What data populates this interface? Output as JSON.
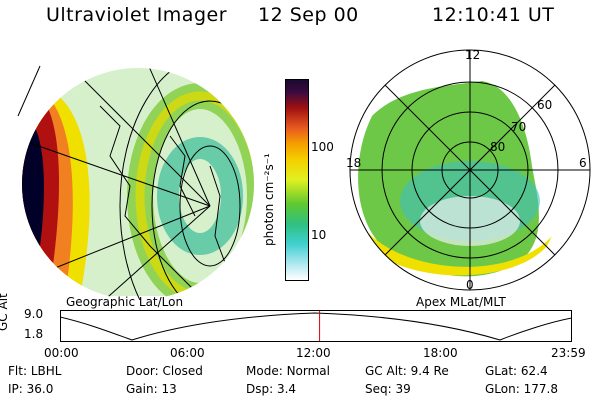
{
  "header": {
    "title": "Ultraviolet Imager",
    "date": "12 Sep 00",
    "time": "12:10:41 UT"
  },
  "colorbar": {
    "label": "photon cm⁻²s⁻¹",
    "ticks": [
      "100",
      "10"
    ],
    "colors": [
      "#1a0a30",
      "#3a0a40",
      "#6a1020",
      "#a01010",
      "#d03020",
      "#e85a20",
      "#f5a000",
      "#f5d000",
      "#e0f020",
      "#a8e030",
      "#60c830",
      "#30c080",
      "#40d0d0",
      "#b0e8f0",
      "#ffffff"
    ]
  },
  "left_panel": {
    "caption": "Geographic Lat/Lon",
    "emission_colors": [
      "#000028",
      "#b01010",
      "#f08020",
      "#f0e000",
      "#8ed040",
      "#40c0c0",
      "#e8f0f0"
    ]
  },
  "right_panel": {
    "caption": "Apex MLat/MLT",
    "mlt_labels": {
      "top": "12",
      "left": "18",
      "right": "6",
      "bottom": "0"
    },
    "lat_labels": [
      "60",
      "70",
      "80"
    ]
  },
  "timeline": {
    "y_label": "GC Alt",
    "y_ticks": [
      "9.0",
      "1.8"
    ],
    "x_ticks": [
      "00:00",
      "06:00",
      "12:00",
      "18:00",
      "23:59"
    ],
    "marker_fraction": 0.507
  },
  "info": {
    "row1": [
      {
        "label": "Flt:",
        "value": "LBHL"
      },
      {
        "label": "Door:",
        "value": "Closed"
      },
      {
        "label": "Mode:",
        "value": "Normal"
      },
      {
        "label": "GC Alt:",
        "value": "9.4 Re"
      },
      {
        "label": "GLat:",
        "value": "62.4"
      }
    ],
    "row2": [
      {
        "label": "IP:",
        "value": "36.0"
      },
      {
        "label": "Gain:",
        "value": "13"
      },
      {
        "label": "Dsp:",
        "value": "3.4"
      },
      {
        "label": "Seq:",
        "value": "39"
      },
      {
        "label": "GLon:",
        "value": "177.8"
      }
    ]
  }
}
